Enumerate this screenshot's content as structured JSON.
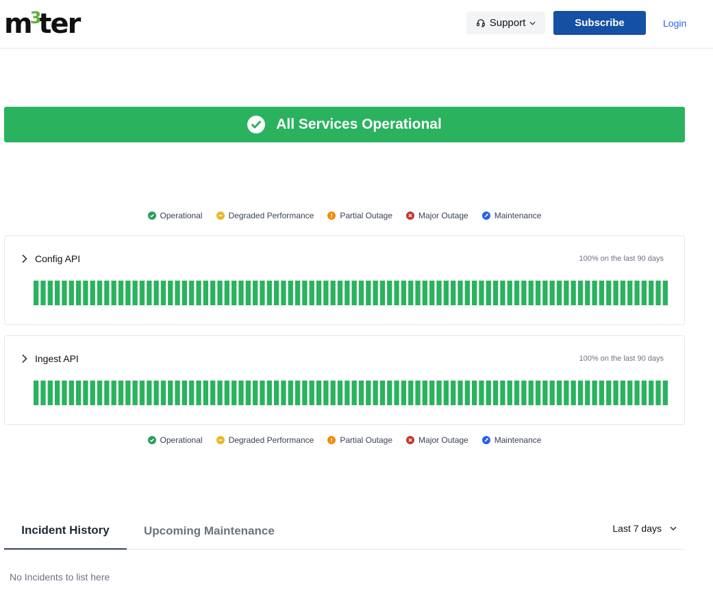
{
  "header": {
    "logo_text_before": "m",
    "logo_text_sup": "3",
    "logo_text_after": "ter",
    "support_label": "Support",
    "subscribe_label": "Subscribe",
    "login_label": "Login"
  },
  "banner": {
    "title": "All Services Operational",
    "color": "#2ab25e"
  },
  "legend": [
    {
      "label": "Operational",
      "color": "#2a9d5c",
      "icon": "check-icon"
    },
    {
      "label": "Degraded Performance",
      "color": "#e9b824",
      "icon": "minus-icon"
    },
    {
      "label": "Partial Outage",
      "color": "#f08c00",
      "icon": "exclamation-icon"
    },
    {
      "label": "Major Outage",
      "color": "#c0392b",
      "icon": "x-icon"
    },
    {
      "label": "Maintenance",
      "color": "#2563eb",
      "icon": "wrench-icon"
    }
  ],
  "components": [
    {
      "name": "Config API",
      "uptime": "100% on the last 90 days",
      "days": 90,
      "status": "operational"
    },
    {
      "name": "Ingest API",
      "uptime": "100% on the last 90 days",
      "days": 90,
      "status": "operational"
    }
  ],
  "tabs": {
    "incident_history": "Incident History",
    "upcoming_maintenance": "Upcoming Maintenance",
    "range": "Last 7 days"
  },
  "empty_state": "No Incidents to list here"
}
